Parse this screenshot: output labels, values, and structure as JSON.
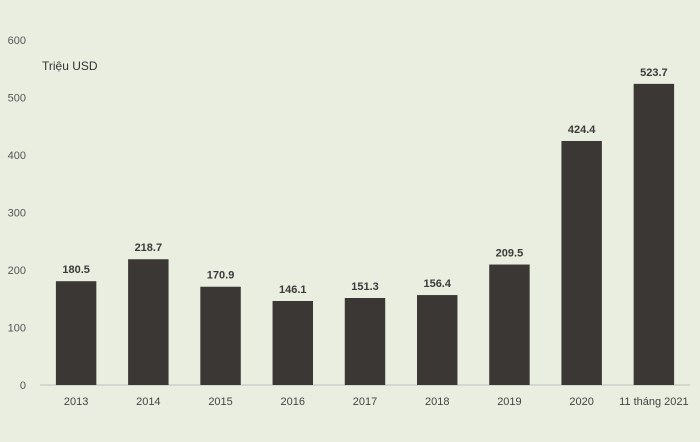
{
  "chart_data": {
    "type": "bar",
    "title": "",
    "unit_label": "Triệu USD",
    "xlabel": "",
    "ylabel": "",
    "categories": [
      "2013",
      "2014",
      "2015",
      "2016",
      "2017",
      "2018",
      "2019",
      "2020",
      "11 tháng 2021"
    ],
    "values": [
      180.5,
      218.7,
      170.9,
      146.1,
      151.3,
      156.4,
      209.5,
      424.4,
      523.7
    ],
    "value_labels": [
      "180.5",
      "218.7",
      "170.9",
      "146.1",
      "151.3",
      "156.4",
      "209.5",
      "424.4",
      "523.7"
    ],
    "ylim": [
      0,
      600
    ],
    "yticks": [
      0,
      100,
      200,
      300,
      400,
      500,
      600
    ],
    "grid": false,
    "legend": "none",
    "bar_color": "#3a3735",
    "background_color": "#e9eee1"
  }
}
